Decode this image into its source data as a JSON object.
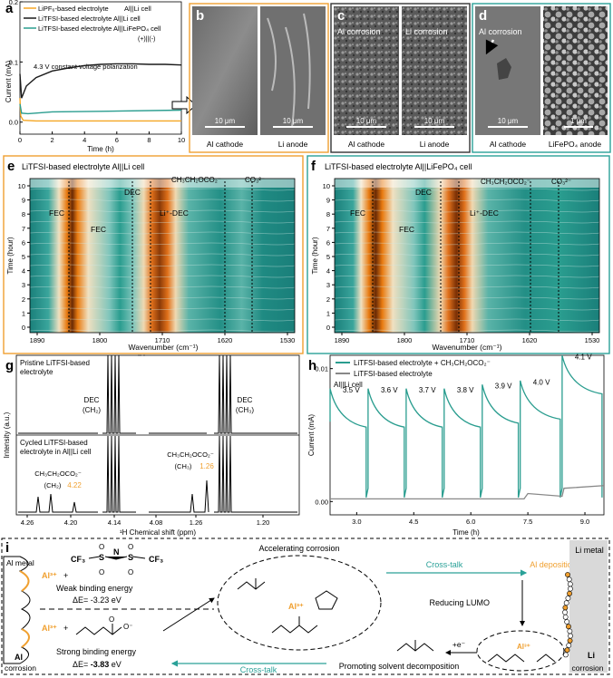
{
  "panels": {
    "a": {
      "label": "a",
      "legend": [
        "LiPF₆-based electrolyte",
        "Al||Li cell",
        "LiTFSI-based electrolyte Al||Li cell",
        "LiTFSI-based electrolyte Al||LiFePO₄ cell",
        "(+)||(-)"
      ],
      "annotation": "4.3 V constant voltage polarization",
      "xlabel": "Time (h)",
      "ylabel": "Current (mA)",
      "colors": {
        "lipf6": "#f5a623",
        "litfsi_li": "#1a1a1a",
        "litfsi_lfp": "#2a9d8f"
      }
    },
    "b": {
      "label": "b",
      "scale": [
        "10 μm",
        "10 μm"
      ],
      "captions": [
        "Al cathode",
        "Li anode"
      ]
    },
    "c": {
      "label": "c",
      "overlay": [
        "Al corrosion",
        "Li corrosion"
      ],
      "scale": [
        "10 μm",
        "10 μm"
      ],
      "captions": [
        "Al cathode",
        "Li anode"
      ]
    },
    "d": {
      "label": "d",
      "overlay": "Al corrosion",
      "scale": [
        "10 μm",
        "1 μm"
      ],
      "captions": [
        "Al cathode",
        "LiFePO₄ anode"
      ]
    },
    "e": {
      "label": "e",
      "title": "LiTFSI-based electrolyte Al||Li cell",
      "peaks": [
        "FEC",
        "FEC",
        "DEC",
        "Li⁺-DEC",
        "CH₃CH₂OCO₂⁻",
        "CO₃²⁻"
      ],
      "xlabel": "Wavenumber (cm⁻¹)",
      "ylabel": "Time (hour)"
    },
    "f": {
      "label": "f",
      "title": "LiTFSI-based electrolyte Al||LiFePO₄ cell",
      "peaks": [
        "FEC",
        "FEC",
        "DEC",
        "Li⁺-DEC",
        "CH₃CH₂OCO₂⁻",
        "CO₃²⁻"
      ],
      "xlabel": "Wavenumber (cm⁻¹)",
      "ylabel": "Time (hour)"
    },
    "g": {
      "label": "g",
      "top_text": [
        "Pristine LiTFSI-based",
        "electrolyte"
      ],
      "bottom_text": [
        "Cycled LiTFSI-based",
        "electrolyte in Al||Li cell"
      ],
      "annotations": [
        "DEC",
        "(CH₂)",
        "DEC",
        "(CH₃)",
        "CH₃CH₂OCO₂⁻",
        "(CH₂)",
        "4.22",
        "CH₃CH₂OCO₂⁻",
        "(CH₃)",
        "1.26"
      ],
      "xlabel": "¹H Chemical shift (ppm)",
      "ylabel": "Intensity (a.u.)"
    },
    "h": {
      "label": "h",
      "legend": [
        "LiTFSI-based electrolyte + CH₃CH₂OCO₂⁻",
        "LiTFSI-based electrolyte"
      ],
      "cell": "Al||Li cell",
      "xlabel": "Time (h)",
      "ylabel": "Current (mA)"
    },
    "i": {
      "label": "i",
      "texts": {
        "al_metal": "Al metal",
        "al_corrosion": [
          "Al",
          "corrosion"
        ],
        "li_metal": "Li metal",
        "li_corrosion": [
          "Li",
          "corrosion"
        ],
        "ion": "Al³⁺",
        "plus": "+",
        "cf3": "CF₃",
        "weak": "Weak binding energy",
        "weak_e": "ΔE= -3.23 eV",
        "strong": "Strong binding energy",
        "strong_e_prefix": "ΔE= ",
        "strong_e_value": "-3.83",
        "strong_e_unit": " eV",
        "accelerating": "Accelerating corrosion",
        "crosstalk": "Cross-talk",
        "al_deposition": "Al deposition",
        "reducing": "Reducing LUMO",
        "electron": "+e⁻",
        "promoting": "Promoting solvent decomposition"
      }
    }
  },
  "chart_data": [
    {
      "type": "line",
      "title": "",
      "xlabel": "Time (h)",
      "ylabel": "Current (mA)",
      "xlim": [
        0,
        10
      ],
      "ylim": [
        -0.02,
        0.2
      ],
      "xticks": [
        0,
        2,
        4,
        6,
        8,
        10
      ],
      "yticks": [
        0.0,
        0.1,
        0.2
      ],
      "series": [
        {
          "name": "LiPF₆-based electrolyte Al||Li cell",
          "color": "#f5a623",
          "x": [
            0,
            0.05,
            0.2,
            1,
            4,
            10
          ],
          "y": [
            0.04,
            0.01,
            0.003,
            0.002,
            0.002,
            0.002
          ]
        },
        {
          "name": "LiTFSI-based electrolyte Al||Li cell",
          "color": "#1a1a1a",
          "x": [
            0,
            0.1,
            0.4,
            1,
            2,
            3,
            4,
            5,
            6,
            7,
            8,
            9,
            10
          ],
          "y": [
            0.08,
            0.04,
            0.06,
            0.074,
            0.085,
            0.09,
            0.094,
            0.096,
            0.097,
            0.097,
            0.096,
            0.096,
            0.095
          ]
        },
        {
          "name": "LiTFSI-based electrolyte Al||LiFePO₄ cell",
          "color": "#2a9d8f",
          "x": [
            0,
            0.1,
            0.5,
            2,
            5,
            10
          ],
          "y": [
            0.03,
            0.015,
            0.014,
            0.017,
            0.018,
            0.02
          ]
        }
      ]
    },
    {
      "type": "heatmap",
      "title": "LiTFSI-based electrolyte Al||Li cell",
      "xlabel": "Wavenumber (cm⁻¹)",
      "ylabel": "Time (hour)",
      "xticks": [
        1890,
        1800,
        1710,
        1620,
        1530
      ],
      "yticks": [
        0,
        1,
        2,
        3,
        4,
        5,
        6,
        7,
        8,
        9,
        10
      ]
    },
    {
      "type": "heatmap",
      "title": "LiTFSI-based electrolyte Al||LiFePO₄ cell",
      "xlabel": "Wavenumber (cm⁻¹)",
      "ylabel": "Time (hour)",
      "xticks": [
        1890,
        1800,
        1710,
        1620,
        1530
      ],
      "yticks": [
        0,
        1,
        2,
        3,
        4,
        5,
        6,
        7,
        8,
        9,
        10
      ]
    },
    {
      "type": "line",
      "title": "",
      "xlabel": "¹H Chemical shift (ppm)",
      "ylabel": "Intensity (a.u.)",
      "xticks": [
        "4.26",
        "4.20",
        "4.14",
        "4.08",
        "1.26",
        "1.20"
      ]
    },
    {
      "type": "line",
      "title": "",
      "xlabel": "Time (h)",
      "ylabel": "Current (mA)",
      "xlim": [
        2.3,
        9.5
      ],
      "ylim": [
        -0.001,
        0.011
      ],
      "xticks": [
        "3.0",
        "4.5",
        "6.0",
        "7.5",
        "9.0"
      ],
      "yticks": [
        "0.00",
        "0.01"
      ],
      "step_labels": [
        "3.5 V",
        "3.6 V",
        "3.7 V",
        "3.8 V",
        "3.9 V",
        "4.0 V",
        "4.1 V"
      ],
      "series": [
        {
          "name": "LiTFSI-based electrolyte + CH₃CH₂OCO₂⁻",
          "color": "#2a9d8f"
        },
        {
          "name": "LiTFSI-based electrolyte",
          "color": "#888888"
        }
      ]
    }
  ]
}
